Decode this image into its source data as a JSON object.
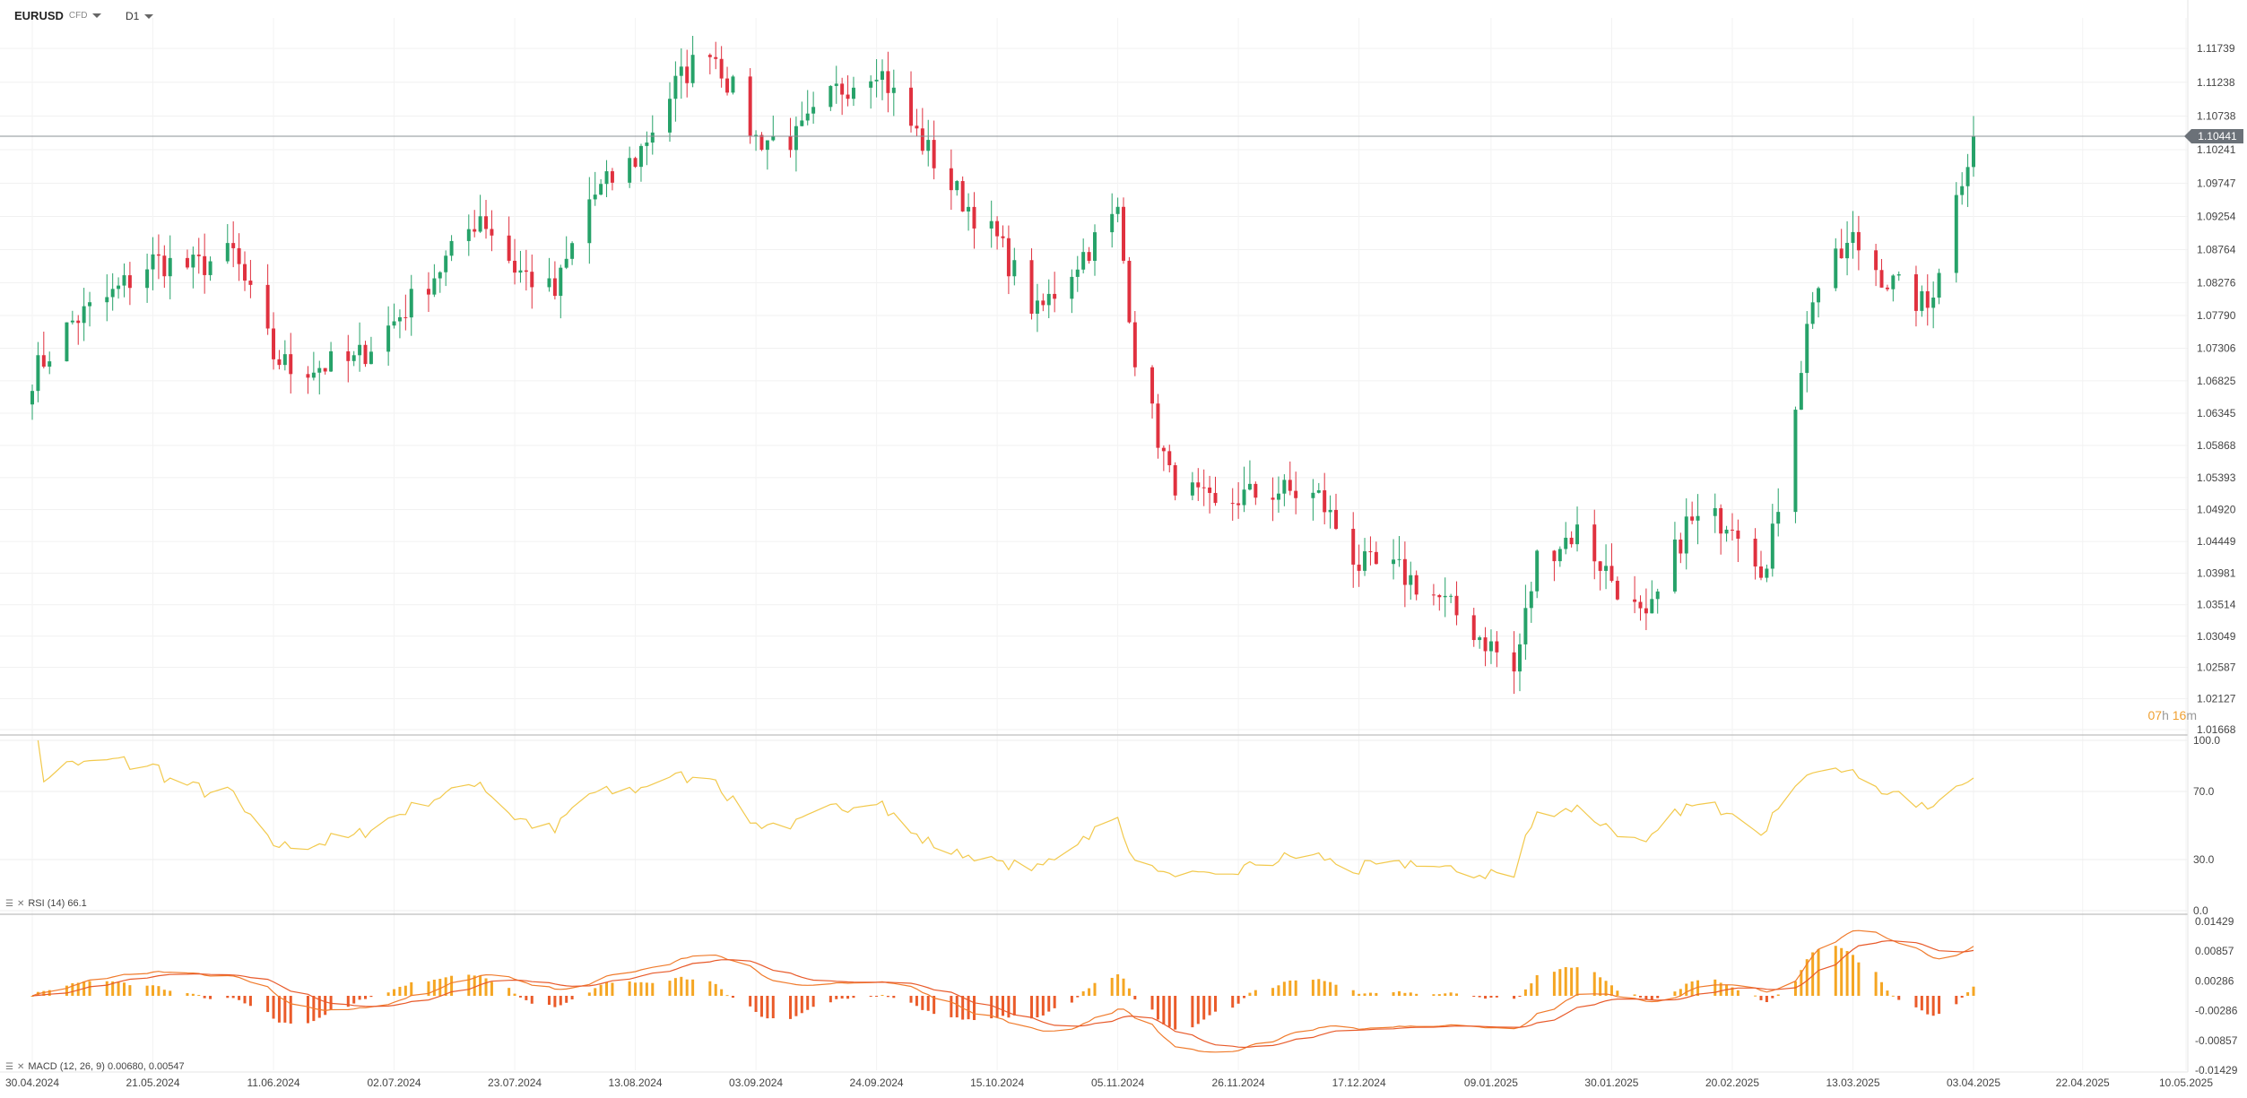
{
  "header": {
    "symbol": "EURUSD",
    "symbol_sub": "CFD",
    "timeframe": "D1"
  },
  "price_tag": "1.10441",
  "timer": {
    "h": "07",
    "h_unit": "h",
    "m": "16",
    "m_unit": "m"
  },
  "rsi_label": "RSI (14) 66.1",
  "macd_label": "MACD (12, 26, 9) 0.00680, 0.00547",
  "colors": {
    "up": "#26a269",
    "down": "#e0313f",
    "rsi": "#f2c94c",
    "macd": "#f07b2c",
    "signal": "#e85a2a",
    "hist_up": "#f5a623",
    "hist_down": "#ea5b2a"
  },
  "chart_data": {
    "type": "candlestick",
    "y_ticks": [
      "1.11739",
      "1.11238",
      "1.10738",
      "1.10241",
      "1.09747",
      "1.09254",
      "1.08764",
      "1.08276",
      "1.07790",
      "1.07306",
      "1.06825",
      "1.06345",
      "1.05868",
      "1.05393",
      "1.04920",
      "1.04449",
      "1.03981",
      "1.03514",
      "1.03049",
      "1.02587",
      "1.02127",
      "1.01668"
    ],
    "x_ticks": [
      "30.04.2024",
      "21.05.2024",
      "11.06.2024",
      "02.07.2024",
      "23.07.2024",
      "13.08.2024",
      "03.09.2024",
      "24.09.2024",
      "15.10.2024",
      "05.11.2024",
      "26.11.2024",
      "17.12.2024",
      "09.01.2025",
      "30.01.2025",
      "20.02.2025",
      "13.03.2025",
      "03.04.2025",
      "22.04.2025",
      "10.05.2025"
    ],
    "last_price": 1.10441,
    "close_path": [
      [
        "30.04.2024",
        1.069
      ],
      [
        "07.05.2024",
        1.077
      ],
      [
        "14.05.2024",
        1.081
      ],
      [
        "21.05.2024",
        1.086
      ],
      [
        "28.05.2024",
        1.085
      ],
      [
        "04.06.2024",
        1.087
      ],
      [
        "11.06.2024",
        1.072
      ],
      [
        "14.06.2024",
        1.07
      ],
      [
        "25.06.2024",
        1.071
      ],
      [
        "02.07.2024",
        1.077
      ],
      [
        "12.07.2024",
        1.087
      ],
      [
        "17.07.2024",
        1.093
      ],
      [
        "23.07.2024",
        1.085
      ],
      [
        "30.07.2024",
        1.081
      ],
      [
        "05.08.2024",
        1.095
      ],
      [
        "13.08.2024",
        1.101
      ],
      [
        "20.08.2024",
        1.112
      ],
      [
        "26.08.2024",
        1.118
      ],
      [
        "03.09.2024",
        1.104
      ],
      [
        "10.09.2024",
        1.104
      ],
      [
        "17.09.2024",
        1.111
      ],
      [
        "24.09.2024",
        1.115
      ],
      [
        "30.09.2024",
        1.106
      ],
      [
        "07.10.2024",
        1.097
      ],
      [
        "15.10.2024",
        1.089
      ],
      [
        "22.10.2024",
        1.078
      ],
      [
        "29.10.2024",
        1.086
      ],
      [
        "05.11.2024",
        1.093
      ],
      [
        "08.11.2024",
        1.072
      ],
      [
        "14.11.2024",
        1.054
      ],
      [
        "22.11.2024",
        1.049
      ],
      [
        "26.11.2024",
        1.051
      ],
      [
        "03.12.2024",
        1.052
      ],
      [
        "10.12.2024",
        1.051
      ],
      [
        "17.12.2024",
        1.041
      ],
      [
        "24.12.2024",
        1.04
      ],
      [
        "31.12.2024",
        1.036
      ],
      [
        "09.01.2025",
        1.029
      ],
      [
        "13.01.2025",
        1.025
      ],
      [
        "17.01.2025",
        1.042
      ],
      [
        "24.01.2025",
        1.046
      ],
      [
        "30.01.2025",
        1.039
      ],
      [
        "05.02.2025",
        1.032
      ],
      [
        "12.02.2025",
        1.047
      ],
      [
        "20.02.2025",
        1.048
      ],
      [
        "26.02.2025",
        1.04
      ],
      [
        "06.03.2025",
        1.081
      ],
      [
        "13.03.2025",
        1.089
      ],
      [
        "19.03.2025",
        1.083
      ],
      [
        "26.03.2025",
        1.079
      ],
      [
        "03.04.2025",
        1.105
      ]
    ],
    "rsi": {
      "levels": [
        "100.0",
        "70.0",
        "30.0",
        "0.0"
      ],
      "last": 66.1
    },
    "macd": {
      "ticks": [
        "0.01429",
        "0.00857",
        "0.00286",
        "-0.00286",
        "-0.00857",
        "-0.01429"
      ],
      "macd_last": 0.0068,
      "signal_last": 0.00547
    }
  }
}
